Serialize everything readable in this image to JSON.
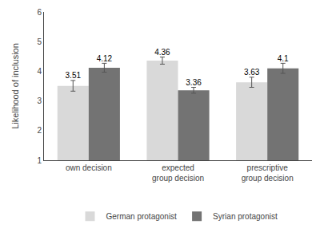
{
  "chart_data": {
    "type": "bar",
    "categories": [
      "own decision",
      "expected\ngroup decision",
      "prescriptive\ngroup decision"
    ],
    "series": [
      {
        "name": "German protagonist",
        "color": "#d9d9d9",
        "values": [
          3.51,
          4.36,
          3.63
        ],
        "errors": [
          0.18,
          0.12,
          0.17
        ]
      },
      {
        "name": "Syrian protagonist",
        "color": "#737373",
        "values": [
          4.12,
          3.36,
          4.1
        ],
        "errors": [
          0.15,
          0.1,
          0.17
        ]
      }
    ],
    "ylabel": "Likelihood of inclusion",
    "ylim": [
      1,
      6
    ],
    "yticks": [
      1,
      2,
      3,
      4,
      5,
      6
    ],
    "grid": false,
    "legend": "bottom",
    "data_labels": true
  }
}
